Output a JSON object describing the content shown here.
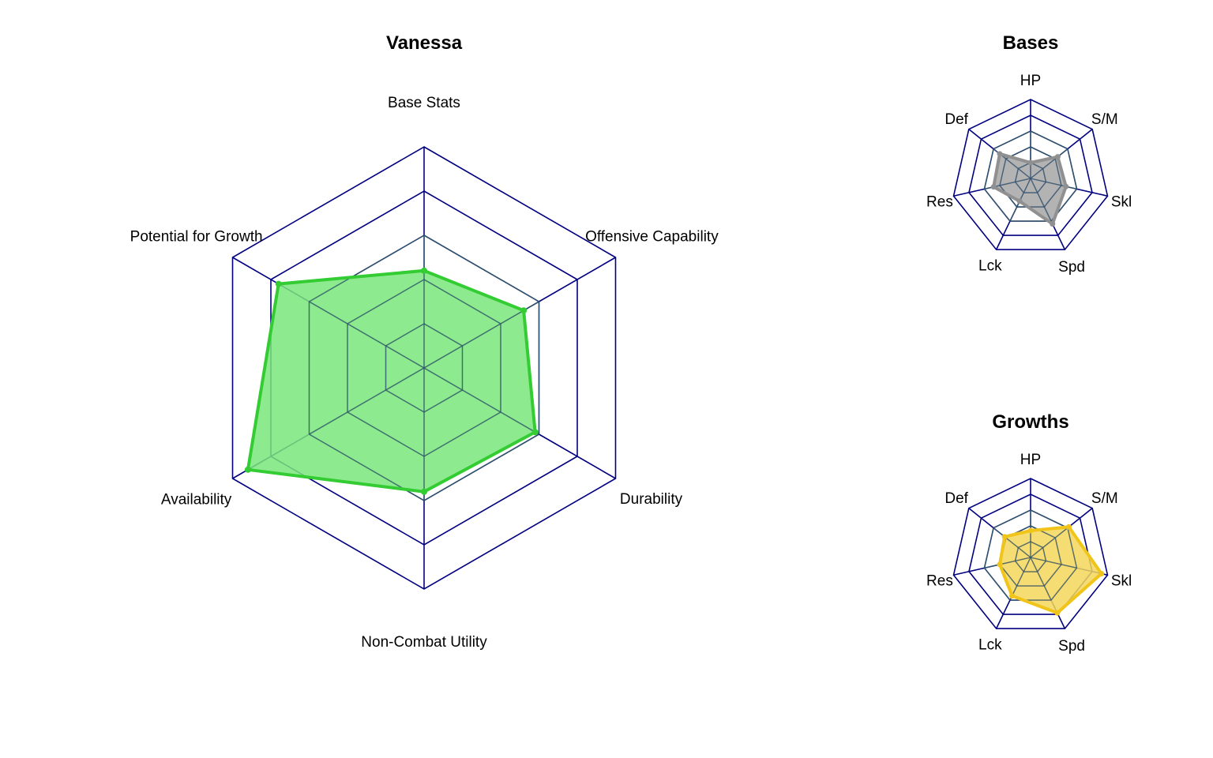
{
  "chart_data": [
    {
      "type": "radar",
      "title": "Vanessa",
      "axes": [
        "Base Stats",
        "Offensive Capability",
        "Durability",
        "Non-Combat Utility",
        "Availability",
        "Potential for Growth"
      ],
      "rings": 5,
      "range": [
        0,
        5
      ],
      "grid": true,
      "series": [
        {
          "values": [
            2.2,
            2.6,
            2.9,
            2.8,
            4.6,
            3.8
          ]
        }
      ],
      "colors": {
        "grid_outer": "#000080",
        "grid_inner": "#2f4f6f",
        "fill": "#7ae67a",
        "line": "#33cc33"
      }
    },
    {
      "type": "radar",
      "title": "Bases",
      "axes": [
        "HP",
        "S/M",
        "Skl",
        "Spd",
        "Lck",
        "Res",
        "Def"
      ],
      "rings": 5,
      "range": [
        0,
        5
      ],
      "grid": true,
      "series": [
        {
          "values": [
            1.0,
            2.2,
            2.3,
            3.2,
            1.6,
            2.4,
            2.5
          ]
        }
      ],
      "colors": {
        "grid_outer": "#000080",
        "grid_inner": "#2f4f6f",
        "fill": "#a6a6a6",
        "line": "#909090"
      }
    },
    {
      "type": "radar",
      "title": "Growths",
      "axes": [
        "HP",
        "S/M",
        "Skl",
        "Spd",
        "Lck",
        "Res",
        "Def"
      ],
      "rings": 5,
      "range": [
        0,
        5
      ],
      "grid": true,
      "series": [
        {
          "values": [
            1.7,
            3.1,
            4.6,
            3.9,
            2.7,
            2.0,
            2.1
          ]
        }
      ],
      "colors": {
        "grid_outer": "#000080",
        "grid_inner": "#2f4f6f",
        "fill": "#f3d75a",
        "line": "#f0c419"
      }
    }
  ]
}
